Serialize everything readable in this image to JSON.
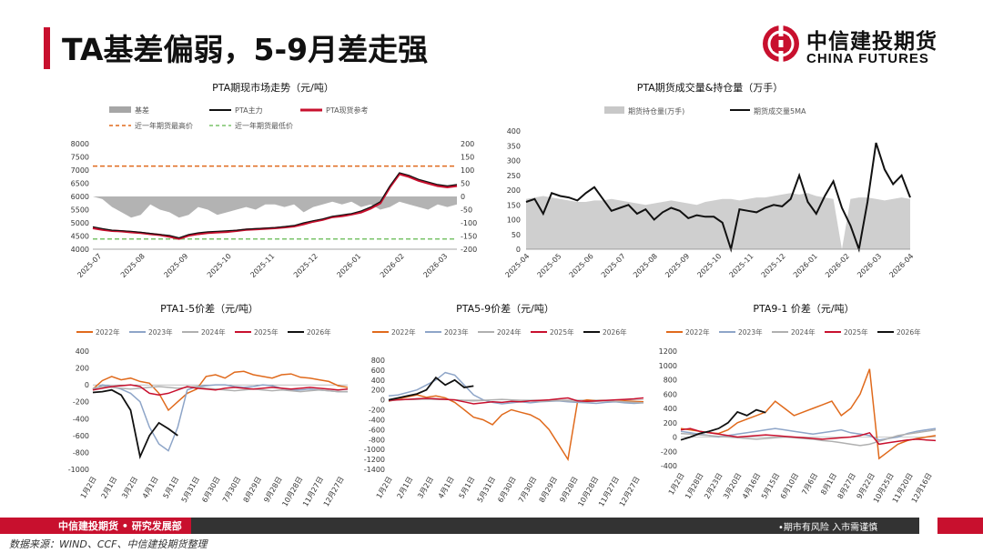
{
  "header": {
    "title": "TA基差偏弱，5-9月差走强"
  },
  "logo": {
    "cn": "中信建投期货",
    "en": "CHINA FUTURES"
  },
  "footer": {
    "left": "中信建投期货 • 研究发展部",
    "right": "•期市有风险   入市需谨慎",
    "source": "数据来源：WIND、CCF、中信建投期货整理"
  },
  "colors": {
    "accent": "#c8102e",
    "dark": "#111111",
    "gray": "#a6a6a6",
    "orange": "#e06a1c",
    "blue": "#8ea5c8",
    "lightgray": "#b0b0b0"
  },
  "chart_data": [
    {
      "type": "line",
      "title": "PTA期现市场走势（元/吨）",
      "legend": [
        "基差",
        "PTA主力",
        "PTA现货参考",
        "近一年期货最高价",
        "近一年期货最低价"
      ],
      "x_ticks": [
        "2025-07",
        "2025-08",
        "2025-09",
        "2025-10",
        "2025-11",
        "2025-12",
        "2026-01",
        "2026-02",
        "2026-03"
      ],
      "y_ticks": [
        "4000",
        "4500",
        "5000",
        "5500",
        "6000",
        "6500",
        "7000",
        "7500",
        "8000"
      ],
      "y2_ticks": [
        "-200",
        "-150",
        "-100",
        "-50",
        "0",
        "50",
        "100",
        "150",
        "200"
      ],
      "ylim": [
        4000,
        8000
      ],
      "y2lim": [
        -200,
        200
      ],
      "high_line": 7150,
      "low_line": 4390,
      "series": [
        {
          "name": "PTA主力",
          "values": [
            4850,
            4780,
            4720,
            4700,
            4680,
            4640,
            4600,
            4560,
            4520,
            4430,
            4560,
            4620,
            4660,
            4680,
            4700,
            4720,
            4760,
            4780,
            4800,
            4820,
            4860,
            4900,
            5000,
            5080,
            5150,
            5250,
            5300,
            5350,
            5450,
            5600,
            5800,
            6400,
            6900,
            6800,
            6650,
            6550,
            6450,
            6400,
            6450
          ]
        },
        {
          "name": "PTA现货参考",
          "values": [
            4800,
            4740,
            4700,
            4680,
            4650,
            4620,
            4580,
            4540,
            4480,
            4400,
            4520,
            4580,
            4620,
            4640,
            4660,
            4700,
            4740,
            4760,
            4780,
            4800,
            4830,
            4870,
            4950,
            5050,
            5120,
            5220,
            5260,
            5320,
            5400,
            5550,
            5750,
            6350,
            6850,
            6750,
            6600,
            6500,
            6400,
            6350,
            6400
          ]
        },
        {
          "name": "基差",
          "values": [
            0,
            -10,
            -40,
            -60,
            -80,
            -70,
            -30,
            -50,
            -60,
            -80,
            -70,
            -40,
            -50,
            -70,
            -60,
            -50,
            -40,
            -50,
            -30,
            -30,
            -40,
            -30,
            -60,
            -40,
            -30,
            -20,
            -30,
            -20,
            -40,
            -30,
            -50,
            -40,
            -20,
            -30,
            -40,
            -50,
            -30,
            -40,
            -30
          ]
        }
      ]
    },
    {
      "type": "line",
      "title": "PTA期货成交量&持仓量（万手）",
      "legend": [
        "期货持仓量(万手)",
        "期货成交量5MA"
      ],
      "x_ticks": [
        "2025-04",
        "2025-05",
        "2025-06",
        "2025-07",
        "2025-08",
        "2025-09",
        "2025-10",
        "2025-11",
        "2025-12",
        "2026-01",
        "2026-02",
        "2026-03",
        "2026-04"
      ],
      "y_ticks": [
        "0",
        "50",
        "100",
        "150",
        "200",
        "250",
        "300",
        "350",
        "400"
      ],
      "ylim": [
        0,
        400
      ],
      "series": [
        {
          "name": "期货持仓量(万手)",
          "values": [
            170,
            175,
            180,
            175,
            170,
            165,
            160,
            160,
            165,
            165,
            170,
            165,
            160,
            155,
            150,
            155,
            160,
            165,
            160,
            155,
            150,
            160,
            165,
            170,
            170,
            165,
            170,
            175,
            175,
            180,
            185,
            190,
            185,
            190,
            180,
            175,
            170,
            0,
            170,
            175,
            175,
            170,
            165,
            170,
            175,
            170
          ]
        },
        {
          "name": "期货成交量5MA",
          "values": [
            160,
            170,
            120,
            190,
            180,
            175,
            165,
            190,
            210,
            170,
            130,
            140,
            150,
            120,
            135,
            100,
            125,
            140,
            130,
            105,
            115,
            110,
            110,
            90,
            0,
            135,
            130,
            125,
            140,
            150,
            145,
            170,
            250,
            160,
            120,
            180,
            230,
            140,
            80,
            0,
            160,
            360,
            270,
            220,
            250,
            175
          ]
        }
      ]
    },
    {
      "type": "line",
      "title": "PTA1-5价差（元/吨）",
      "legend": [
        "2022年",
        "2023年",
        "2024年",
        "2025年",
        "2026年"
      ],
      "x_ticks": [
        "1月2日",
        "2月1日",
        "3月2日",
        "4月1日",
        "5月1日",
        "5月31日",
        "6月30日",
        "7月30日",
        "8月29日",
        "9月28日",
        "10月28日",
        "11月27日",
        "12月27日"
      ],
      "y_ticks": [
        "-1000",
        "-800",
        "-600",
        "-400",
        "-200",
        "0",
        "200",
        "400"
      ],
      "ylim": [
        -1000,
        400
      ],
      "series": [
        {
          "name": "2022年",
          "values": [
            -50,
            50,
            100,
            60,
            80,
            40,
            20,
            -100,
            -300,
            -200,
            -100,
            -50,
            100,
            120,
            80,
            150,
            160,
            120,
            100,
            80,
            120,
            130,
            90,
            80,
            60,
            40,
            -10,
            -30
          ]
        },
        {
          "name": "2023年",
          "values": [
            -60,
            0,
            -20,
            -50,
            -100,
            -200,
            -500,
            -700,
            -780,
            -500,
            -60,
            -20,
            -10,
            0,
            0,
            -20,
            -30,
            -20,
            0,
            -10,
            -40,
            -60,
            -60,
            -50,
            -60,
            -70,
            -80,
            -80
          ]
        },
        {
          "name": "2024年",
          "values": [
            -40,
            -20,
            -30,
            -40,
            -50,
            -40,
            -30,
            -20,
            -30,
            -40,
            -30,
            -20,
            -40,
            -50,
            -60,
            -70,
            -60,
            -50,
            -60,
            -70,
            -60,
            -70,
            -80,
            -70,
            -60,
            -70,
            -80,
            -80
          ]
        },
        {
          "name": "2025年",
          "values": [
            -60,
            -40,
            -20,
            -10,
            0,
            -20,
            -100,
            -120,
            -100,
            -60,
            -20,
            -40,
            -50,
            -60,
            -40,
            -30,
            -40,
            -50,
            -40,
            -30,
            -40,
            -50,
            -40,
            -30,
            -40,
            -50,
            -60,
            -50
          ]
        },
        {
          "name": "2026年",
          "values": [
            -90,
            -80,
            -60,
            -120,
            -300,
            -850,
            -600,
            -450,
            -520,
            -600
          ]
        }
      ]
    },
    {
      "type": "line",
      "title": "PTA5-9价差（元/吨）",
      "legend": [
        "2022年",
        "2023年",
        "2024年",
        "2025年",
        "2026年"
      ],
      "x_ticks": [
        "1月2日",
        "2月1日",
        "3月2日",
        "4月1日",
        "5月1日",
        "5月31日",
        "6月30日",
        "7月30日",
        "8月29日",
        "9月28日",
        "10月28日",
        "11月27日",
        "12月27日"
      ],
      "y_ticks": [
        "-1400",
        "-1200",
        "-1000",
        "-800",
        "-600",
        "-400",
        "-200",
        "0",
        "200",
        "400",
        "600",
        "800"
      ],
      "ylim": [
        -1400,
        800
      ],
      "series": [
        {
          "name": "2022年",
          "values": [
            -30,
            20,
            60,
            100,
            50,
            80,
            40,
            -50,
            -200,
            -350,
            -400,
            -500,
            -300,
            -200,
            -250,
            -300,
            -400,
            -600,
            -900,
            -1200,
            -50,
            0,
            -20,
            -10,
            -30,
            -20,
            -30,
            -40
          ]
        },
        {
          "name": "2023年",
          "values": [
            80,
            100,
            150,
            200,
            300,
            400,
            550,
            500,
            300,
            100,
            0,
            -50,
            -80,
            -60,
            -40,
            -60,
            -40,
            -30,
            -20,
            -40,
            -50,
            -60,
            -70,
            -50,
            -40,
            -60,
            -70,
            -60
          ]
        },
        {
          "name": "2024年",
          "values": [
            -20,
            0,
            10,
            20,
            30,
            20,
            10,
            0,
            -10,
            -20,
            -10,
            0,
            10,
            0,
            -10,
            -20,
            -30,
            -20,
            -10,
            -20,
            -30,
            -40,
            -30,
            -20,
            -30,
            -40,
            -50,
            -60
          ]
        },
        {
          "name": "2025年",
          "values": [
            -10,
            0,
            10,
            20,
            30,
            20,
            10,
            0,
            -40,
            -80,
            -60,
            -40,
            -50,
            -30,
            -40,
            -20,
            -10,
            0,
            20,
            40,
            -20,
            -30,
            -20,
            -10,
            0,
            10,
            20,
            40
          ]
        },
        {
          "name": "2026年",
          "values": [
            0,
            40,
            80,
            120,
            200,
            450,
            300,
            400,
            250,
            280
          ]
        }
      ]
    },
    {
      "type": "line",
      "title": "PTA9-1 价差（元/吨）",
      "legend": [
        "2022年",
        "2023年",
        "2024年",
        "2025年",
        "2026年"
      ],
      "x_ticks": [
        "1月2日",
        "1月28日",
        "2月23日",
        "3月20日",
        "4月16日",
        "5月15日",
        "6月10日",
        "7月6日",
        "8月1日",
        "8月27日",
        "9月22日",
        "10月25日",
        "11月20日",
        "12月16日"
      ],
      "y_ticks": [
        "-400",
        "-200",
        "0",
        "200",
        "400",
        "600",
        "800",
        "1000",
        "1200"
      ],
      "ylim": [
        -400,
        1200
      ],
      "series": [
        {
          "name": "2022年",
          "values": [
            120,
            100,
            80,
            60,
            50,
            100,
            200,
            250,
            300,
            350,
            500,
            400,
            300,
            350,
            400,
            450,
            500,
            300,
            400,
            600,
            950,
            -300,
            -200,
            -100,
            -50,
            -20,
            0,
            20
          ]
        },
        {
          "name": "2023年",
          "values": [
            80,
            60,
            40,
            20,
            0,
            20,
            40,
            60,
            80,
            100,
            120,
            100,
            80,
            60,
            40,
            60,
            80,
            100,
            60,
            40,
            20,
            -40,
            -20,
            0,
            50,
            80,
            100,
            120
          ]
        },
        {
          "name": "2024年",
          "values": [
            50,
            40,
            30,
            20,
            10,
            0,
            -10,
            -20,
            -30,
            -20,
            -10,
            0,
            -10,
            -20,
            -30,
            -50,
            -60,
            -80,
            -100,
            -120,
            -100,
            -60,
            -20,
            20,
            40,
            60,
            80,
            100
          ]
        },
        {
          "name": "2025年",
          "values": [
            100,
            120,
            80,
            60,
            40,
            20,
            0,
            10,
            20,
            30,
            20,
            10,
            0,
            -10,
            -20,
            -30,
            -20,
            -10,
            0,
            20,
            60,
            -100,
            -80,
            -60,
            -40,
            -30,
            -40,
            -50
          ]
        },
        {
          "name": "2026年",
          "values": [
            -40,
            0,
            50,
            80,
            120,
            200,
            350,
            300,
            380,
            340
          ]
        }
      ]
    }
  ]
}
